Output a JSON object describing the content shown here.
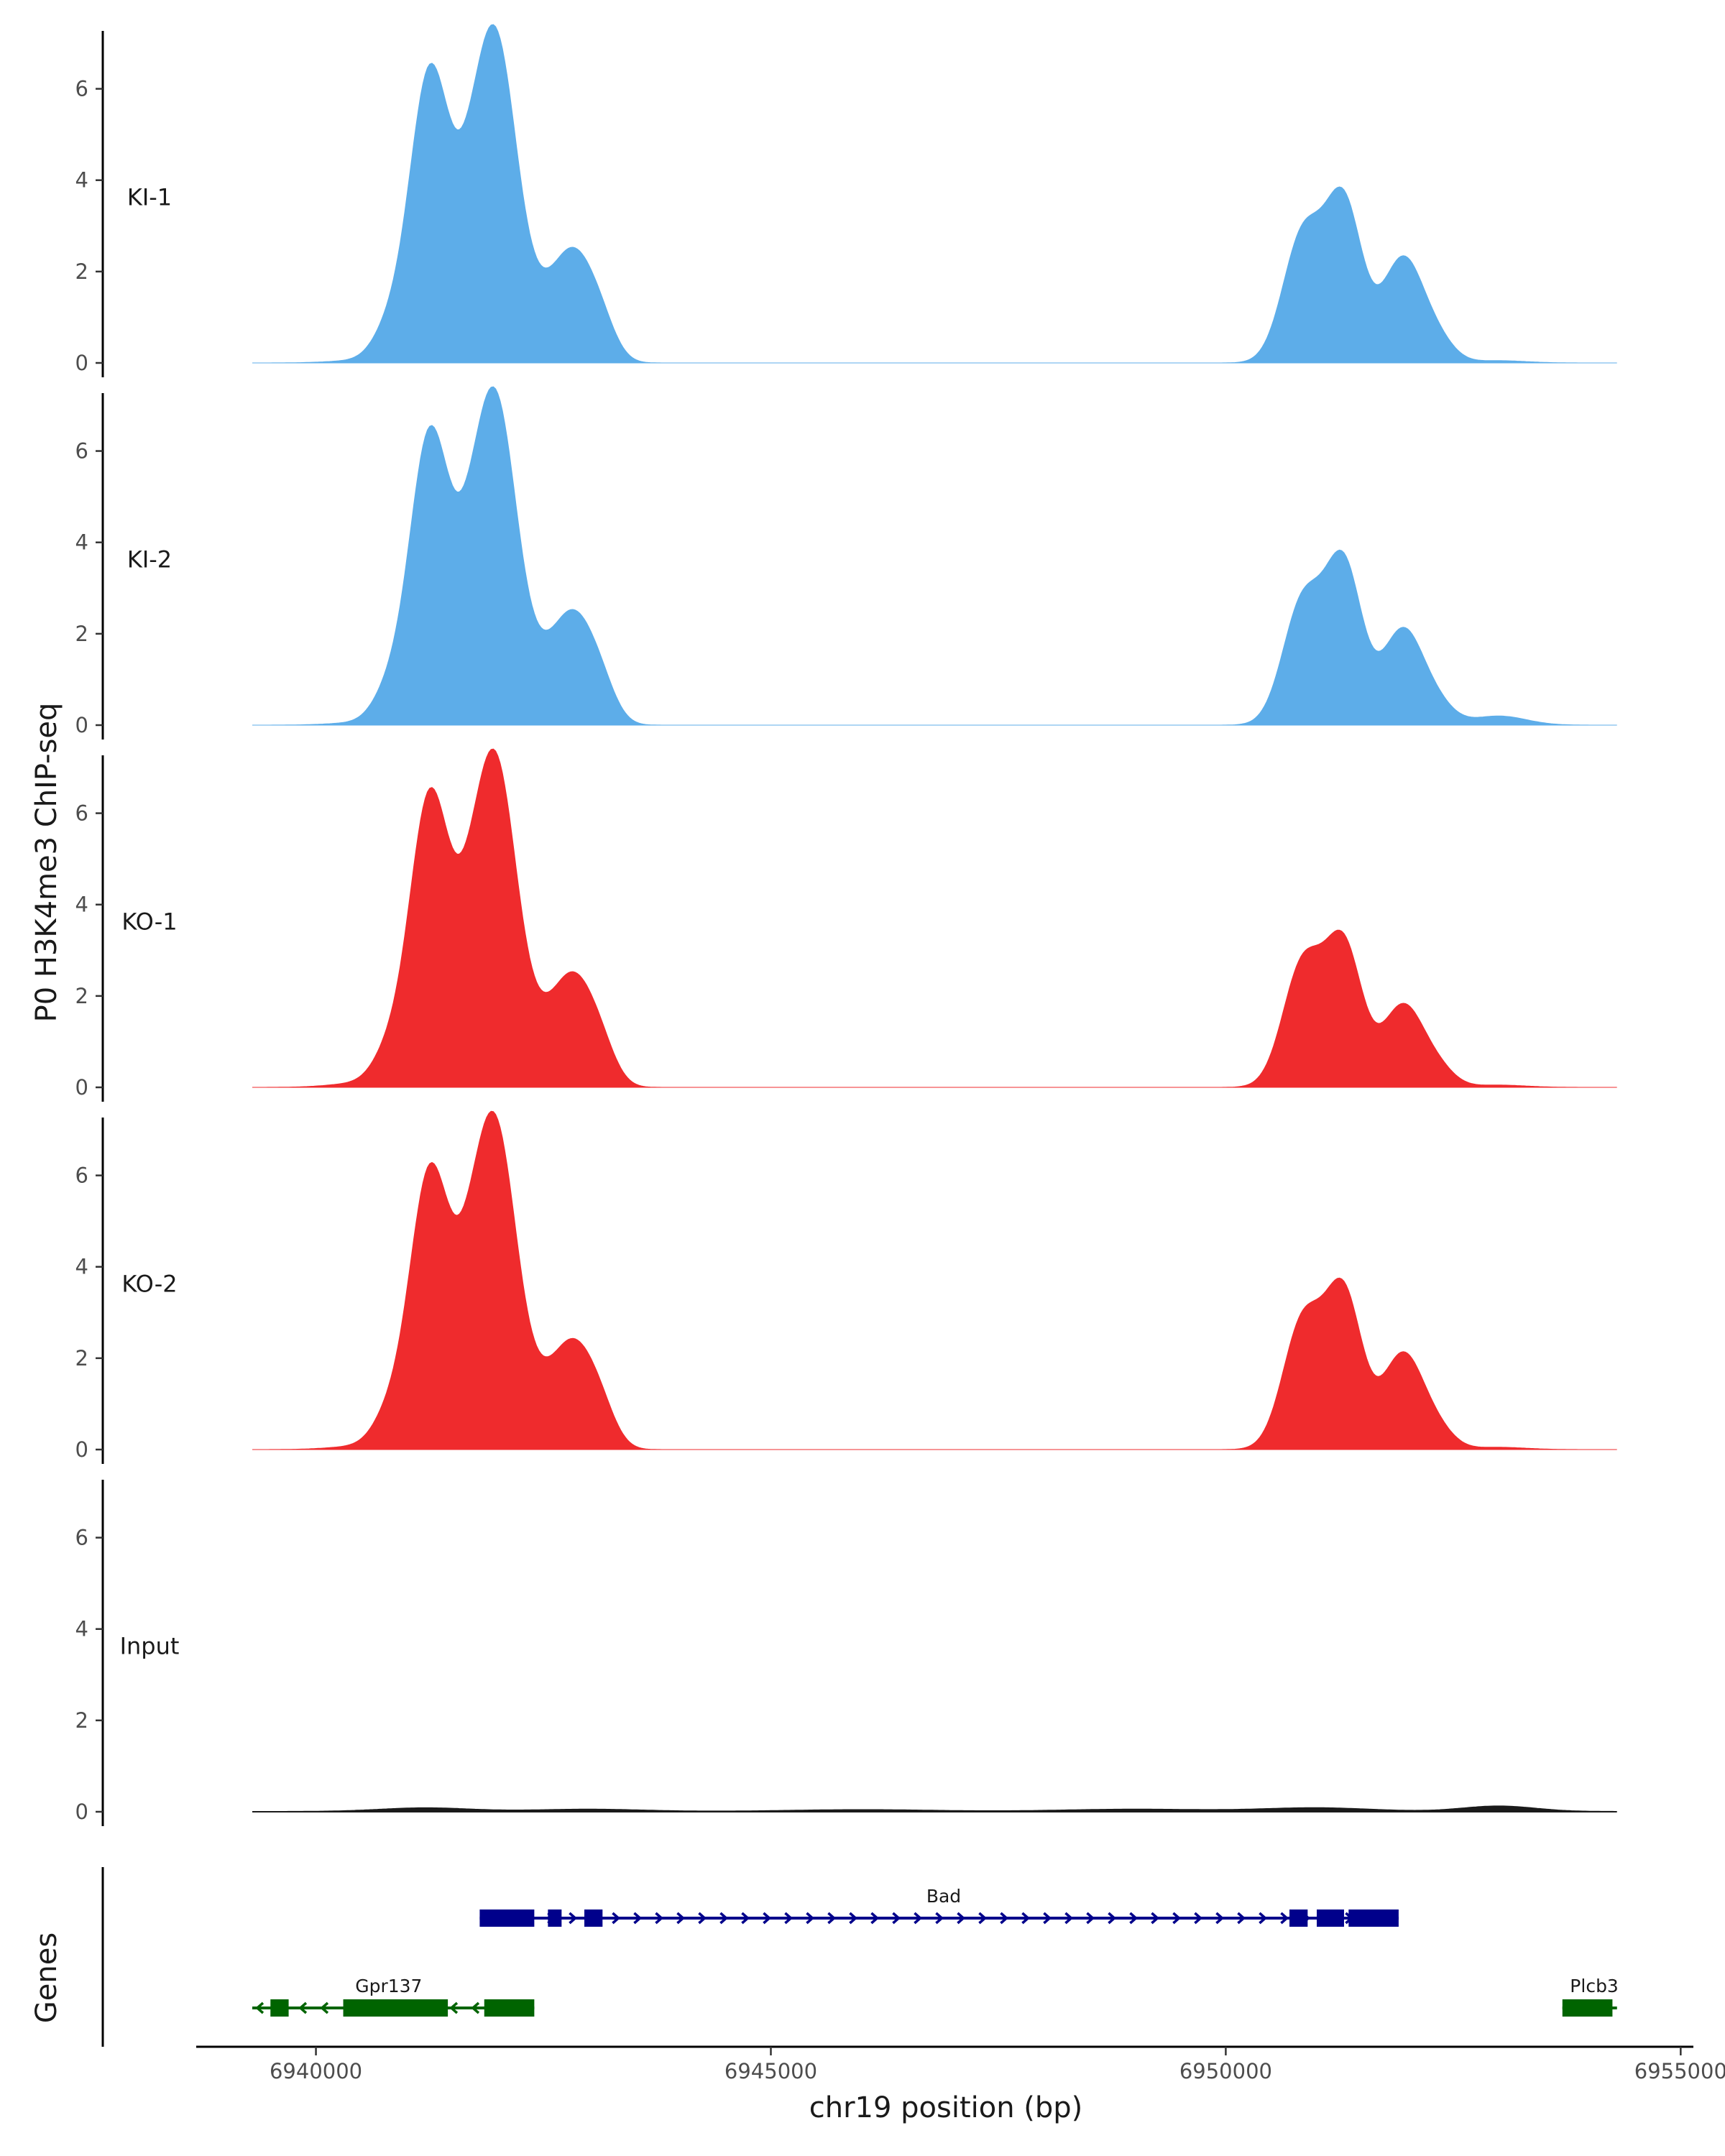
{
  "chart_data": {
    "type": "area",
    "ylabel": "P0 H3K4me3 ChIP-seq",
    "xlabel": "chr19 position (bp)",
    "genes_label": "Genes",
    "ylim": [
      0,
      7
    ],
    "y_ticks": [
      0,
      2,
      4,
      6
    ],
    "xlim": [
      6938700,
      6955100
    ],
    "x_ticks": [
      6940000,
      6945000,
      6950000,
      6955000
    ],
    "x_tick_labels": [
      "6940000",
      "6945000",
      "6950000",
      "6955000"
    ],
    "colors": {
      "KI": "#5dade9",
      "KO": "#ef2b2d",
      "Input": "#1a1a1a",
      "gene_plus": "#00008b",
      "gene_minus": "#006400"
    },
    "tracks": [
      {
        "name": "KI-1",
        "color": "#5dade9",
        "peaks": [
          [
            6940550,
            0.35,
            0.06
          ],
          [
            6940800,
            0.18,
            0.6
          ],
          [
            6941250,
            0.22,
            6.3
          ],
          [
            6941700,
            0.2,
            2.2
          ],
          [
            6942000,
            0.23,
            6.5
          ],
          [
            6942480,
            0.18,
            0.8
          ],
          [
            6942800,
            0.2,
            2.1
          ],
          [
            6943100,
            0.18,
            1.0
          ],
          [
            6950850,
            0.22,
            2.8
          ],
          [
            6951300,
            0.2,
            3.4
          ],
          [
            6951950,
            0.23,
            2.3
          ],
          [
            6952350,
            0.18,
            0.35
          ],
          [
            6953000,
            0.3,
            0.05
          ]
        ]
      },
      {
        "name": "KI-2",
        "color": "#5dade9",
        "peaks": [
          [
            6940550,
            0.35,
            0.06
          ],
          [
            6940800,
            0.18,
            0.6
          ],
          [
            6941250,
            0.22,
            6.3
          ],
          [
            6941700,
            0.2,
            2.2
          ],
          [
            6942000,
            0.23,
            6.5
          ],
          [
            6942480,
            0.18,
            0.8
          ],
          [
            6942800,
            0.2,
            2.1
          ],
          [
            6943100,
            0.18,
            1.0
          ],
          [
            6950850,
            0.22,
            2.7
          ],
          [
            6951300,
            0.2,
            3.4
          ],
          [
            6951950,
            0.23,
            2.1
          ],
          [
            6952350,
            0.18,
            0.3
          ],
          [
            6953000,
            0.3,
            0.2
          ]
        ]
      },
      {
        "name": "KO-1",
        "color": "#ef2b2d",
        "peaks": [
          [
            6940550,
            0.35,
            0.1
          ],
          [
            6940800,
            0.18,
            0.6
          ],
          [
            6941250,
            0.22,
            6.3
          ],
          [
            6941700,
            0.2,
            2.2
          ],
          [
            6942000,
            0.23,
            6.5
          ],
          [
            6942480,
            0.18,
            0.8
          ],
          [
            6942800,
            0.2,
            2.1
          ],
          [
            6943100,
            0.18,
            1.0
          ],
          [
            6950850,
            0.22,
            2.7
          ],
          [
            6951300,
            0.2,
            3.0
          ],
          [
            6951950,
            0.23,
            1.8
          ],
          [
            6952350,
            0.18,
            0.3
          ],
          [
            6953000,
            0.3,
            0.05
          ]
        ]
      },
      {
        "name": "KO-2",
        "color": "#ef2b2d",
        "peaks": [
          [
            6940550,
            0.35,
            0.08
          ],
          [
            6940800,
            0.18,
            0.6
          ],
          [
            6941250,
            0.22,
            6.0
          ],
          [
            6941700,
            0.2,
            2.4
          ],
          [
            6942000,
            0.23,
            6.4
          ],
          [
            6942480,
            0.18,
            0.8
          ],
          [
            6942800,
            0.2,
            2.0
          ],
          [
            6943100,
            0.18,
            1.0
          ],
          [
            6950850,
            0.22,
            2.8
          ],
          [
            6951300,
            0.2,
            3.3
          ],
          [
            6951950,
            0.23,
            2.1
          ],
          [
            6952350,
            0.18,
            0.3
          ],
          [
            6953000,
            0.3,
            0.05
          ]
        ]
      },
      {
        "name": "Input",
        "color": "#1a1a1a",
        "peaks": [
          [
            6941200,
            0.5,
            0.08
          ],
          [
            6943000,
            0.6,
            0.05
          ],
          [
            6946000,
            0.8,
            0.04
          ],
          [
            6949000,
            0.8,
            0.05
          ],
          [
            6951000,
            0.6,
            0.08
          ],
          [
            6953000,
            0.4,
            0.12
          ]
        ]
      }
    ],
    "genes": [
      {
        "name": "Bad",
        "strand": "+",
        "color": "#00008b",
        "row": 0,
        "start": 6941800,
        "end": 6951900,
        "label_pos": 6946900,
        "exons": [
          [
            6941800,
            6942400
          ],
          [
            6942550,
            6942700
          ],
          [
            6942950,
            6943150
          ],
          [
            6950700,
            6950900
          ],
          [
            6951000,
            6951300
          ],
          [
            6951350,
            6951900
          ]
        ]
      },
      {
        "name": "Gpr137",
        "strand": "-",
        "color": "#006400",
        "row": 1,
        "start": 6939300,
        "end": 6942400,
        "label_pos": 6940800,
        "exons": [
          [
            6939500,
            6939700
          ],
          [
            6940300,
            6941450
          ],
          [
            6941850,
            6942400
          ]
        ]
      },
      {
        "name": "Plcb3",
        "strand": "-",
        "color": "#006400",
        "row": 1,
        "start": 6953700,
        "end": 6954300,
        "label_pos": 6954050,
        "exons": [
          [
            6953700,
            6954250
          ]
        ]
      }
    ]
  }
}
